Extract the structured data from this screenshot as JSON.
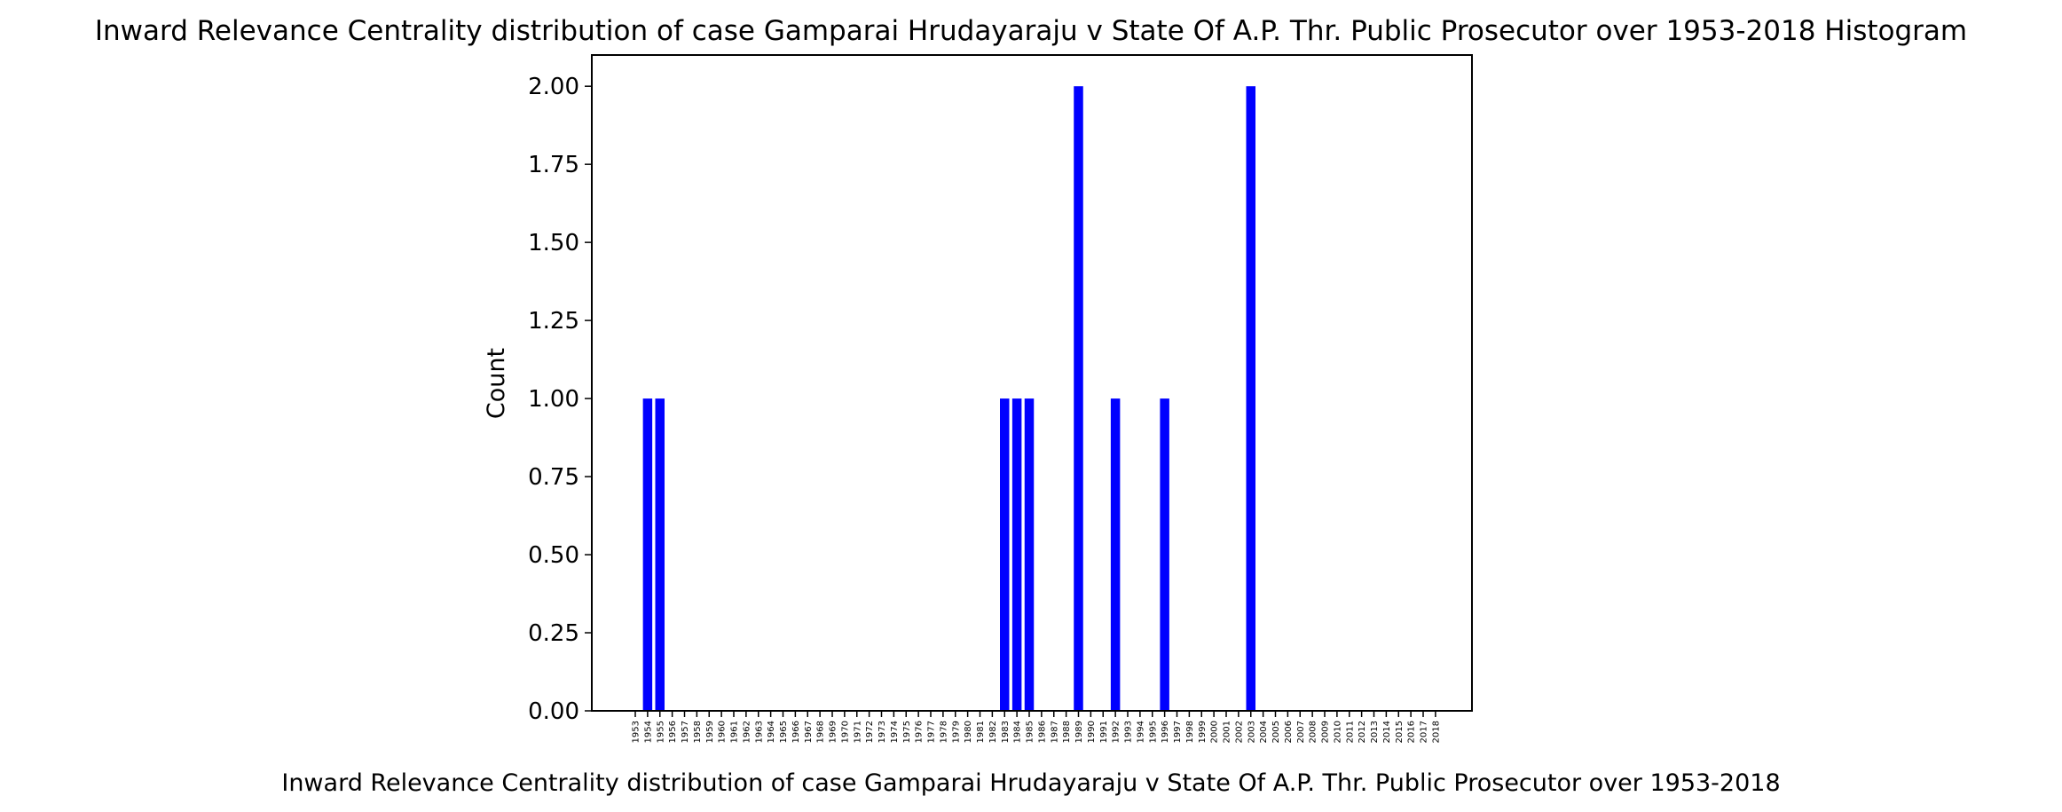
{
  "chart_data": {
    "type": "bar",
    "title": "Inward Relevance Centrality distribution of case Gamparai Hrudayaraju v State Of A.P. Thr. Public Prosecutor over 1953-2018 Histogram",
    "xlabel": "Inward Relevance Centrality distribution of case Gamparai Hrudayaraju v State Of A.P. Thr. Public Prosecutor over 1953-2018",
    "ylabel": "Count",
    "ylim": [
      0,
      2.1
    ],
    "yticks": [
      "0.00",
      "0.25",
      "0.50",
      "0.75",
      "1.00",
      "1.25",
      "1.50",
      "1.75",
      "2.00"
    ],
    "categories": [
      "1953",
      "1954",
      "1955",
      "1956",
      "1957",
      "1958",
      "1959",
      "1960",
      "1961",
      "1962",
      "1963",
      "1964",
      "1965",
      "1966",
      "1967",
      "1968",
      "1969",
      "1970",
      "1971",
      "1972",
      "1973",
      "1974",
      "1975",
      "1976",
      "1977",
      "1978",
      "1979",
      "1980",
      "1981",
      "1982",
      "1983",
      "1984",
      "1985",
      "1986",
      "1987",
      "1988",
      "1989",
      "1990",
      "1991",
      "1992",
      "1993",
      "1994",
      "1995",
      "1996",
      "1997",
      "1998",
      "1999",
      "2000",
      "2001",
      "2002",
      "2003",
      "2004",
      "2005",
      "2006",
      "2007",
      "2008",
      "2009",
      "2010",
      "2011",
      "2012",
      "2013",
      "2014",
      "2015",
      "2016",
      "2017",
      "2018"
    ],
    "values": [
      0,
      1,
      1,
      0,
      0,
      0,
      0,
      0,
      0,
      0,
      0,
      0,
      0,
      0,
      0,
      0,
      0,
      0,
      0,
      0,
      0,
      0,
      0,
      0,
      0,
      0,
      0,
      0,
      0,
      0,
      1,
      1,
      1,
      0,
      0,
      0,
      2,
      0,
      0,
      1,
      0,
      0,
      0,
      1,
      0,
      0,
      0,
      0,
      0,
      0,
      2,
      0,
      0,
      0,
      0,
      0,
      0,
      0,
      0,
      0,
      0,
      0,
      0,
      0,
      0,
      0
    ],
    "bar_color": "#0000ff",
    "grid": false
  }
}
